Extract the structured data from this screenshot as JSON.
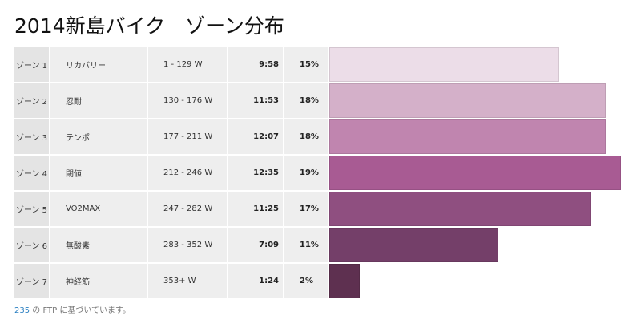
{
  "title": "2014新島バイク　ゾーン分布",
  "zones": [
    {
      "zone": "ゾーン 1",
      "name": "リカバリー",
      "range": "1 - 129 W",
      "time": "9:58",
      "percent_label": "15%",
      "percent": 15,
      "color": "#ecdde8"
    },
    {
      "zone": "ゾーン 2",
      "name": "忍耐",
      "range": "130 - 176 W",
      "time": "11:53",
      "percent_label": "18%",
      "percent": 18,
      "color": "#d4b0c9"
    },
    {
      "zone": "ゾーン 3",
      "name": "テンポ",
      "range": "177 - 211 W",
      "time": "12:07",
      "percent_label": "18%",
      "percent": 18,
      "color": "#c085af"
    },
    {
      "zone": "ゾーン 4",
      "name": "閾値",
      "range": "212 - 246 W",
      "time": "12:35",
      "percent_label": "19%",
      "percent": 19,
      "color": "#a85b93"
    },
    {
      "zone": "ゾーン 5",
      "name": "VO2MAX",
      "range": "247 - 282 W",
      "time": "11:25",
      "percent_label": "17%",
      "percent": 17,
      "color": "#8f4f80"
    },
    {
      "zone": "ゾーン 6",
      "name": "無酸素",
      "range": "283 - 352 W",
      "time": "7:09",
      "percent_label": "11%",
      "percent": 11,
      "color": "#743f69"
    },
    {
      "zone": "ゾーン 7",
      "name": "神経筋",
      "range": "353+ W",
      "time": "1:24",
      "percent_label": "2%",
      "percent": 2,
      "color": "#5e3050"
    }
  ],
  "footnote": {
    "ftp_value": "235",
    "text": " の FTP に基づいています。"
  }
}
